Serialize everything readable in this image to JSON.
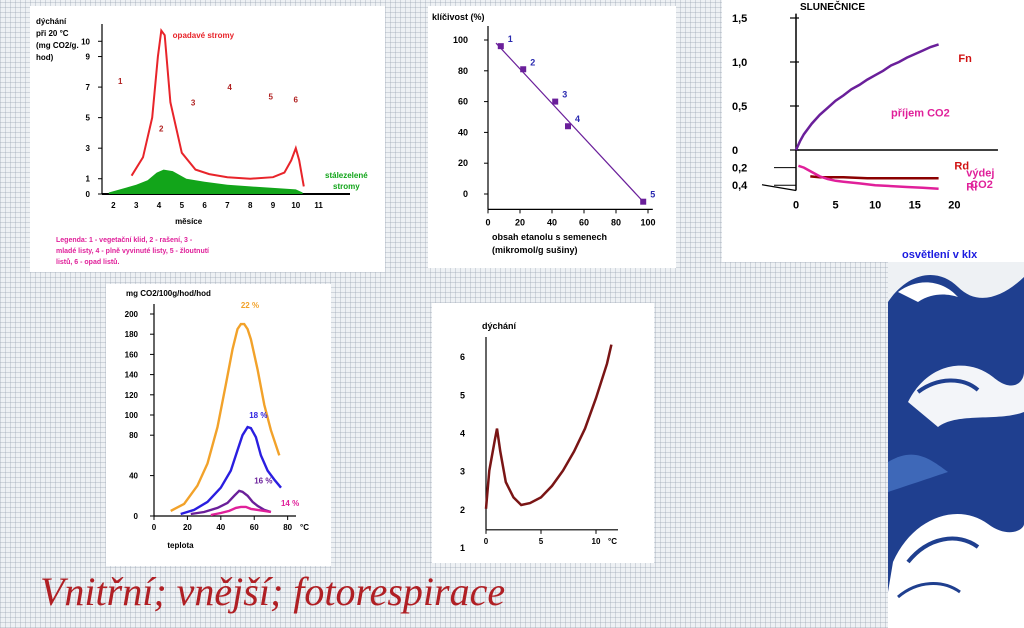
{
  "title": "Vnitřní; vnější; fotorespirace",
  "colors": {
    "red": "#e8242a",
    "green": "#12a51a",
    "purple": "#6a1f9a",
    "magenta": "#e0209a",
    "dark_red": "#8b0000",
    "orange": "#f2a22a",
    "blue": "#2a1ee0",
    "brown": "#7a1515",
    "num_blue": "#2a2ab0",
    "navy": "#1a3a8a"
  },
  "chart_data": [
    {
      "type": "line",
      "ylabel_lines": [
        "dýchání",
        "při 20 °C",
        "(mg CO2/g.",
        "hod)"
      ],
      "xlabel": "měsíce",
      "y_ticks": [
        0,
        1,
        3,
        5,
        7,
        9,
        10
      ],
      "x_ticks": [
        2,
        3,
        4,
        5,
        6,
        7,
        8,
        9,
        10,
        11
      ],
      "xlim": [
        1.5,
        11.5
      ],
      "ylim": [
        0,
        11
      ],
      "series": [
        {
          "name": "opadavé stromy",
          "color": "#e8242a",
          "x": [
            2.8,
            3.3,
            3.7,
            3.95,
            4.1,
            4.25,
            4.5,
            5.0,
            5.6,
            6.2,
            7.0,
            8.0,
            9.0,
            9.5,
            9.8,
            10.0,
            10.15,
            10.35
          ],
          "y": [
            1.2,
            2.4,
            5.0,
            9.0,
            10.7,
            10.4,
            6.0,
            2.7,
            1.6,
            1.3,
            1.1,
            1.0,
            1.1,
            1.4,
            2.2,
            3.0,
            2.2,
            0.5
          ]
        },
        {
          "name": "stálezelené stromy",
          "type": "area",
          "color": "#12a51a",
          "x": [
            1.8,
            3.0,
            3.5,
            3.9,
            4.2,
            4.6,
            5.2,
            6.0,
            7.0,
            8.0,
            9.0,
            10.0,
            10.3
          ],
          "y": [
            0.1,
            0.6,
            0.9,
            1.4,
            1.6,
            1.5,
            1.0,
            0.8,
            0.6,
            0.5,
            0.4,
            0.3,
            0.1
          ]
        }
      ],
      "phase_labels": [
        {
          "text": "1",
          "x": 2.2,
          "y": 7.2
        },
        {
          "text": "2",
          "x": 4.0,
          "y": 4.1
        },
        {
          "text": "3",
          "x": 5.4,
          "y": 5.8
        },
        {
          "text": "4",
          "x": 7.0,
          "y": 6.8
        },
        {
          "text": "5",
          "x": 8.8,
          "y": 6.2
        },
        {
          "text": "6",
          "x": 9.9,
          "y": 6.0
        }
      ],
      "legend_lines": [
        "Legenda: 1 - vegetační klid, 2 - rašení, 3 -",
        "mladé listy, 4 - plně vyvinuté listy, 5 - žloutnutí",
        "listů, 6 - opad listů."
      ]
    },
    {
      "type": "scatter",
      "ylabel": "klíčivost (%)",
      "xlabel_lines": [
        "obsah etanolu s semenech",
        "(mikromol/g sušiny)"
      ],
      "y_ticks": [
        0,
        20,
        40,
        60,
        80,
        100
      ],
      "x_ticks": [
        0,
        20,
        40,
        60,
        80,
        100
      ],
      "xlim": [
        0,
        100
      ],
      "ylim": [
        0,
        100
      ],
      "points": [
        {
          "label": "1",
          "x": 8,
          "y": 96
        },
        {
          "label": "2",
          "x": 22,
          "y": 81
        },
        {
          "label": "3",
          "x": 42,
          "y": 60
        },
        {
          "label": "4",
          "x": 50,
          "y": 44
        },
        {
          "label": "5",
          "x": 97,
          "y": -5
        }
      ],
      "fit_line": {
        "x": [
          5,
          97
        ],
        "y": [
          98,
          -5
        ]
      }
    },
    {
      "type": "line",
      "title": "SLUNEČNICE",
      "xlabel": "osvětlení v klx",
      "y_ticks_upper": [
        "1,5",
        "1,0",
        "0,5",
        "0"
      ],
      "y_tick_values_upper": [
        1.5,
        1.0,
        0.5,
        0
      ],
      "y_ticks_lower": [
        "0,2",
        "0,4"
      ],
      "y_tick_values_lower": [
        -0.2,
        -0.4
      ],
      "x_ticks": [
        0,
        5,
        10,
        15,
        20
      ],
      "xlim": [
        0,
        25
      ],
      "ylim": [
        -0.45,
        1.55
      ],
      "annotations": [
        "příjem CO2",
        "výdej",
        "CO2"
      ],
      "series": [
        {
          "name": "Fn",
          "color": "#6a1f9a",
          "x": [
            0,
            0.5,
            1,
            2,
            3,
            4,
            5,
            6,
            7,
            8,
            9,
            10,
            11,
            12,
            13,
            14,
            15,
            16,
            17,
            18
          ],
          "y": [
            0.0,
            0.1,
            0.18,
            0.3,
            0.4,
            0.48,
            0.56,
            0.62,
            0.69,
            0.74,
            0.8,
            0.85,
            0.9,
            0.96,
            1.0,
            1.05,
            1.09,
            1.13,
            1.17,
            1.2
          ]
        },
        {
          "name": "Rd",
          "color": "#8b0000",
          "x": [
            1.8,
            3,
            6,
            9,
            12,
            15,
            18
          ],
          "y": [
            -0.3,
            -0.31,
            -0.31,
            -0.32,
            -0.32,
            -0.32,
            -0.32
          ]
        },
        {
          "name": "Rl",
          "color": "#e0209a",
          "x": [
            0.3,
            1,
            2,
            3,
            4,
            5,
            6,
            8,
            10,
            12,
            14,
            16,
            18
          ],
          "y": [
            -0.18,
            -0.2,
            -0.25,
            -0.3,
            -0.33,
            -0.35,
            -0.36,
            -0.38,
            -0.4,
            -0.41,
            -0.42,
            -0.43,
            -0.44
          ]
        }
      ]
    },
    {
      "type": "line",
      "ylabel": "mg CO2/100g/hod/hod",
      "xlabel": "teplota",
      "x_unit": "°C",
      "y_ticks": [
        0,
        40,
        80,
        100,
        120,
        140,
        160,
        180,
        200
      ],
      "x_ticks": [
        0,
        20,
        40,
        60,
        80
      ],
      "xlim": [
        0,
        85
      ],
      "ylim": [
        0,
        200
      ],
      "series": [
        {
          "name": "22 %",
          "color": "#f2a22a",
          "x": [
            10,
            18,
            26,
            32,
            38,
            43,
            47,
            50,
            52,
            54,
            56,
            58,
            62,
            66,
            70,
            75
          ],
          "y": [
            5,
            12,
            30,
            52,
            88,
            130,
            165,
            185,
            190,
            190,
            185,
            175,
            145,
            110,
            85,
            60
          ]
        },
        {
          "name": "18 %",
          "color": "#2a1ee0",
          "x": [
            16,
            24,
            32,
            40,
            46,
            50,
            53,
            56,
            58,
            61,
            64,
            68,
            72,
            76
          ],
          "y": [
            2,
            6,
            14,
            28,
            45,
            65,
            80,
            88,
            87,
            78,
            60,
            45,
            36,
            28
          ]
        },
        {
          "name": "16 %",
          "color": "#6a1f9a",
          "x": [
            22,
            30,
            38,
            44,
            48,
            51,
            53,
            56,
            59,
            62,
            66,
            70
          ],
          "y": [
            2,
            4,
            8,
            13,
            20,
            25,
            24,
            20,
            14,
            10,
            6,
            4
          ]
        },
        {
          "name": "14 %",
          "color": "#e0209a",
          "x": [
            34,
            40,
            45,
            49,
            52,
            55,
            58,
            62,
            66,
            70
          ],
          "y": [
            1,
            3,
            5,
            8,
            9,
            9,
            7,
            6,
            5,
            4
          ]
        }
      ]
    },
    {
      "type": "line",
      "title": "dýchání",
      "x_unit": "°C",
      "y_ticks": [
        1,
        2,
        3,
        4,
        5,
        6
      ],
      "x_ticks": [
        0,
        5,
        10
      ],
      "xlim": [
        -0.5,
        12
      ],
      "ylim": [
        1,
        6.5
      ],
      "series": [
        {
          "name": "",
          "color": "#7a1515",
          "x": [
            0,
            0.3,
            0.8,
            1.0,
            1.3,
            1.8,
            2.5,
            3.2,
            4.0,
            5.0,
            6.0,
            7.0,
            8.0,
            9.0,
            10.0,
            11.0,
            11.4
          ],
          "y": [
            2.0,
            3.0,
            3.8,
            4.1,
            3.5,
            2.7,
            2.3,
            2.1,
            2.15,
            2.3,
            2.6,
            3.0,
            3.5,
            4.1,
            4.9,
            5.8,
            6.3
          ]
        }
      ]
    }
  ]
}
